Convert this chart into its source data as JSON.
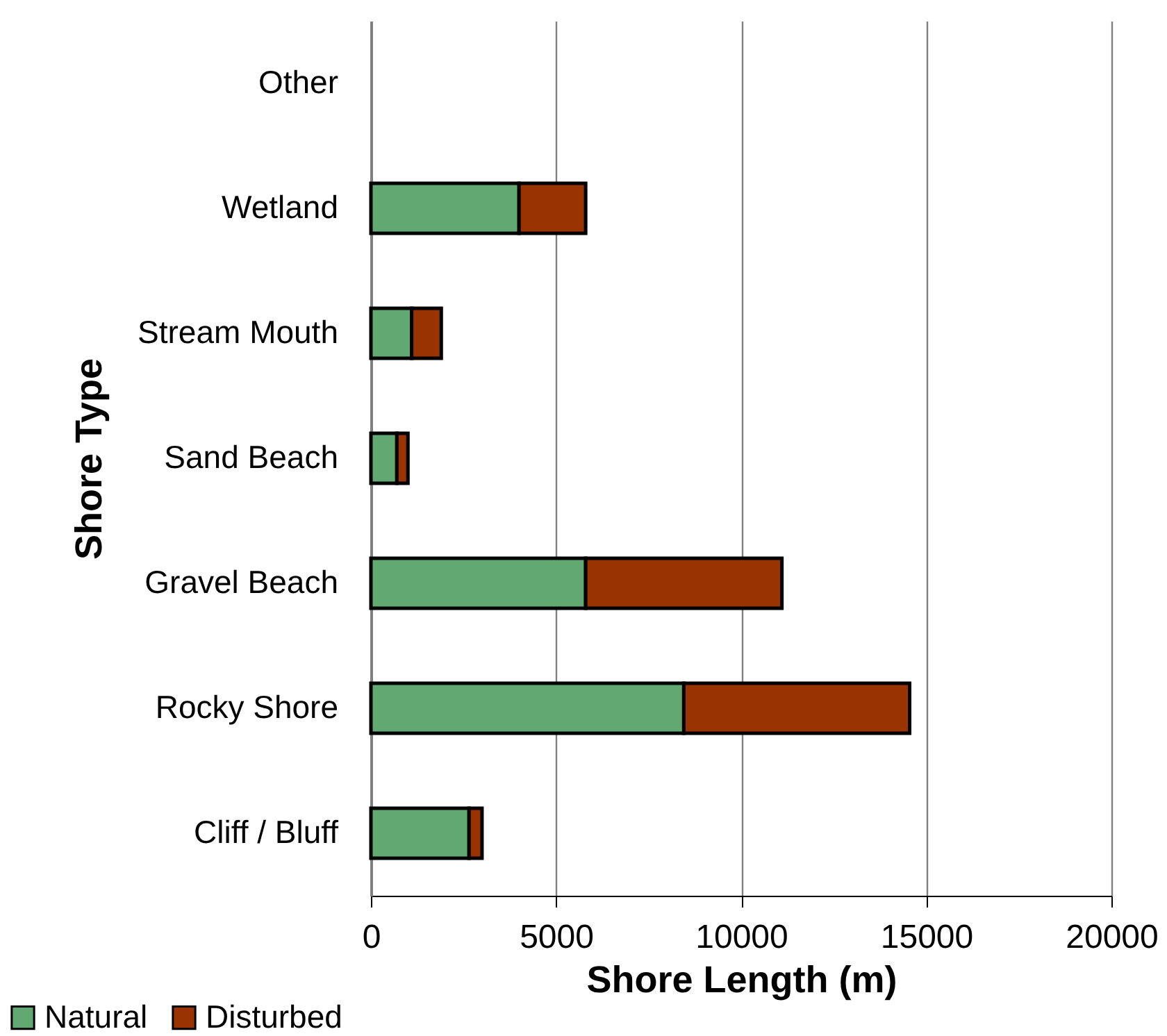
{
  "chart_data": {
    "type": "bar",
    "orientation": "horizontal",
    "stacked": true,
    "categories": [
      "Other",
      "Wetland",
      "Stream Mouth",
      "Sand Beach",
      "Gravel Beach",
      "Rocky Shore",
      "Cliff / Bluff"
    ],
    "series": [
      {
        "name": "Natural",
        "color": "#62a872",
        "values": [
          null,
          4000,
          1100,
          700,
          5800,
          8450,
          2650
        ]
      },
      {
        "name": "Disturbed",
        "color": "#993300",
        "values": [
          null,
          1800,
          800,
          300,
          5300,
          6100,
          350
        ]
      }
    ],
    "xlim": [
      0,
      20000
    ],
    "xticks": [
      0,
      5000,
      10000,
      15000,
      20000
    ],
    "xlabel": "Shore Length (m)",
    "ylabel": "Shore Type",
    "grid": "x",
    "legend": "bottom left"
  }
}
